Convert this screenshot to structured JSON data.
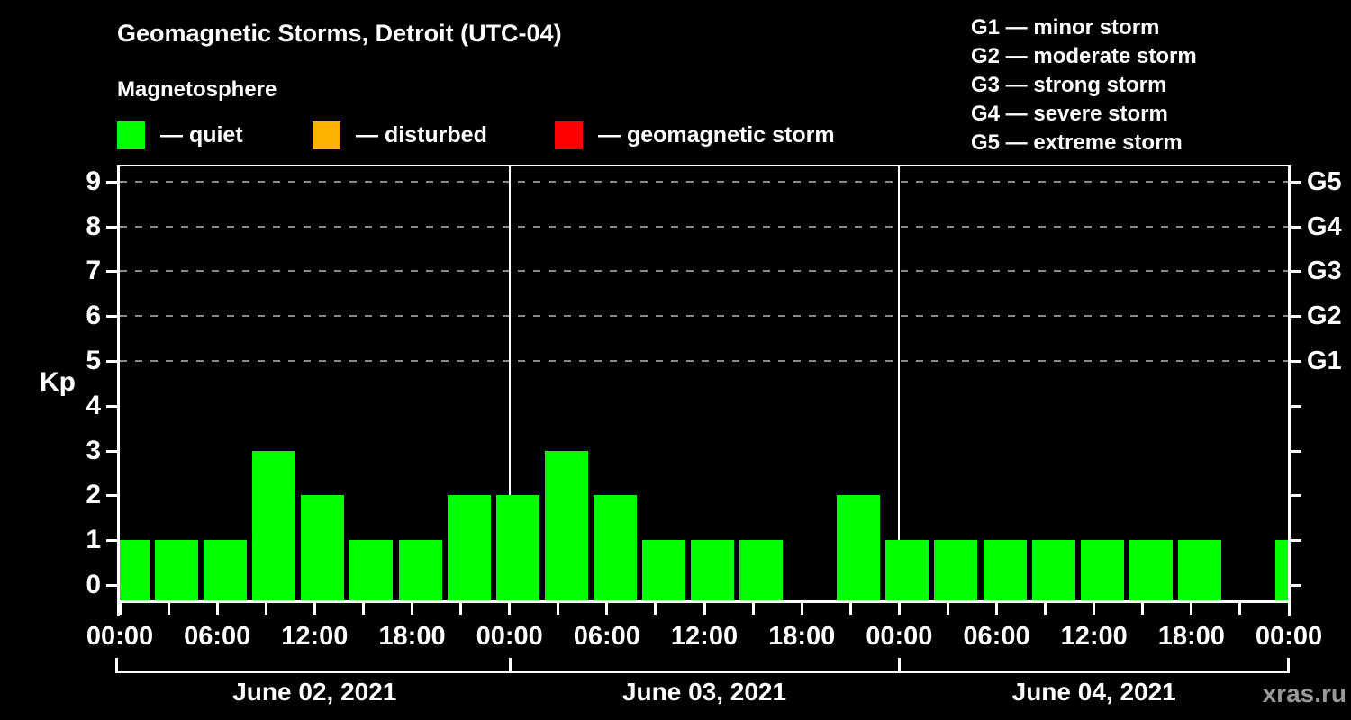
{
  "header": {
    "title": "Geomagnetic Storms, Detroit (UTC-04)",
    "subtitle": "Magnetosphere"
  },
  "legend": {
    "items": [
      {
        "label": "— quiet",
        "color": "#00FF00"
      },
      {
        "label": "— disturbed",
        "color": "#FFB300"
      },
      {
        "label": "— geomagnetic storm",
        "color": "#FF0000"
      }
    ]
  },
  "storm_scale_legend": {
    "items": [
      "G1 — minor storm",
      "G2 — moderate storm",
      "G3 — strong storm",
      "G4 — severe storm",
      "G5 — extreme storm"
    ]
  },
  "watermark": "xras.ru",
  "watermark_color": "#999999",
  "chart_data": {
    "type": "bar",
    "title": "Geomagnetic Storms, Detroit (UTC-04)",
    "ylabel": "Kp",
    "ylim": [
      -0.4,
      9.4
    ],
    "yticks": [
      0,
      1,
      2,
      3,
      4,
      5,
      6,
      7,
      8,
      9
    ],
    "grid_kp": [
      5,
      6,
      7,
      8,
      9
    ],
    "right_axis_labels": [
      {
        "kp": 9,
        "label": "G5"
      },
      {
        "kp": 8,
        "label": "G4"
      },
      {
        "kp": 7,
        "label": "G3"
      },
      {
        "kp": 6,
        "label": "G2"
      },
      {
        "kp": 5,
        "label": "G1"
      }
    ],
    "x_tick_labels": [
      "00:00",
      "06:00",
      "12:00",
      "18:00",
      "00:00",
      "06:00",
      "12:00",
      "18:00",
      "00:00",
      "06:00",
      "12:00",
      "18:00",
      "00:00"
    ],
    "interval_hours": 3,
    "days": [
      {
        "date": "June 02, 2021",
        "kp": [
          1,
          1,
          1,
          3,
          2,
          1,
          1,
          2
        ]
      },
      {
        "date": "June 03, 2021",
        "kp": [
          2,
          3,
          2,
          1,
          1,
          1,
          null,
          2
        ]
      },
      {
        "date": "June 04, 2021",
        "kp": [
          1,
          1,
          1,
          1,
          1,
          1,
          1,
          null
        ]
      }
    ],
    "next_interval_partial_kp": 1,
    "bar_color": "#00FF00",
    "colors": {
      "axis": "#FFFFFF",
      "grid": "#8A8A8A",
      "text": "#FFFFFF"
    },
    "legend_position": "top",
    "grid": true
  }
}
